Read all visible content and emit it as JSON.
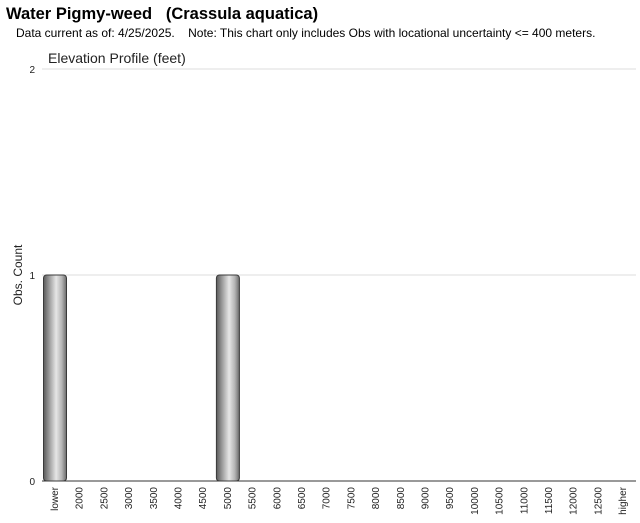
{
  "header": {
    "title": "Water Pigmy-weed   (Crassula aquatica)",
    "note": "Data current as of: 4/25/2025.    Note: This chart only includes Obs with locational uncertainty <= 400 meters."
  },
  "chart_data": {
    "type": "bar",
    "title": "Elevation Profile (feet)",
    "xlabel": "",
    "ylabel": "Obs. Count",
    "ylim": [
      0,
      2
    ],
    "y_ticks": [
      "0",
      "1",
      "2"
    ],
    "grid": true,
    "categories": [
      "lower",
      "2000",
      "2500",
      "3000",
      "3500",
      "4000",
      "4500",
      "5000",
      "5500",
      "6000",
      "6500",
      "7000",
      "7500",
      "8000",
      "8500",
      "9000",
      "9500",
      "10000",
      "10500",
      "11000",
      "11500",
      "12000",
      "12500",
      "higher"
    ],
    "values": [
      1,
      0,
      0,
      0,
      0,
      0,
      0,
      1,
      0,
      0,
      0,
      0,
      0,
      0,
      0,
      0,
      0,
      0,
      0,
      0,
      0,
      0,
      0,
      0
    ]
  }
}
